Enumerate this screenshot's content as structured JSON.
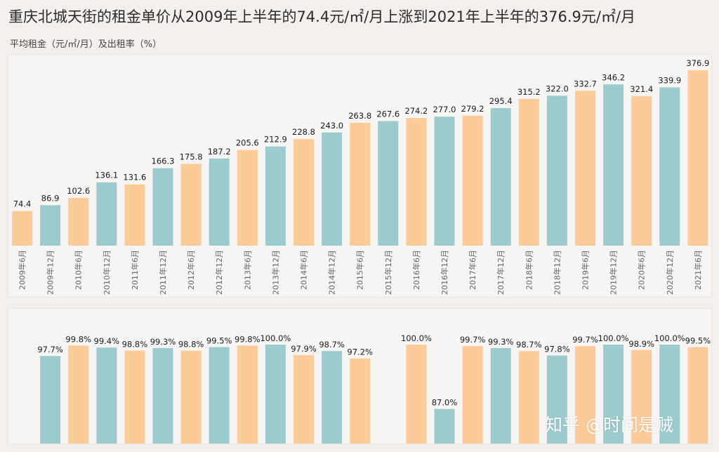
{
  "title": "重庆北城天街的租金单价从2009年上半年的74.4元/㎡/月上涨到2021年上半年的376.9元/㎡/月",
  "subtitle": "平均租金（元/㎡/月）及出租率（%）",
  "watermark": "知乎 @时间是贼",
  "colors": {
    "teal": "#9ccbcd",
    "orange": "#fdcb97"
  },
  "chart_data": [
    {
      "type": "bar",
      "ylabel": "平均租金（元/㎡/月）",
      "categories": [
        "2009年6月",
        "2009年12月",
        "2010年6月",
        "2010年12月",
        "2011年6月",
        "2011年12月",
        "2012年6月",
        "2012年12月",
        "2013年6月",
        "2013年12月",
        "2014年6月",
        "2014年12月",
        "2015年6月",
        "2015年12月",
        "2016年6月",
        "2016年12月",
        "2017年6月",
        "2017年12月",
        "2018年6月",
        "2018年12月",
        "2019年6月",
        "2019年12月",
        "2020年6月",
        "2020年12月",
        "2021年6月"
      ],
      "values": [
        74.4,
        86.9,
        102.6,
        136.1,
        131.6,
        166.3,
        175.8,
        187.2,
        205.6,
        212.9,
        228.8,
        243.0,
        263.8,
        267.6,
        274.2,
        277.0,
        279.2,
        295.4,
        315.2,
        322.0,
        332.7,
        346.2,
        321.4,
        339.9,
        376.9
      ],
      "value_labels": [
        "74.4",
        "86.9",
        "102.6",
        "136.1",
        "131.6",
        "166.3",
        "175.8",
        "187.2",
        "205.6",
        "212.9",
        "228.8",
        "243.0",
        "263.8",
        "267.6",
        "274.2",
        "277.0",
        "279.2",
        "295.4",
        "315.2",
        "322.0",
        "332.7",
        "346.2",
        "321.4",
        "339.9",
        "376.9"
      ],
      "colors": [
        "orange",
        "teal",
        "orange",
        "teal",
        "orange",
        "teal",
        "orange",
        "teal",
        "orange",
        "teal",
        "orange",
        "teal",
        "orange",
        "teal",
        "orange",
        "teal",
        "orange",
        "teal",
        "orange",
        "teal",
        "orange",
        "teal",
        "orange",
        "teal",
        "orange"
      ]
    },
    {
      "type": "bar",
      "ylabel": "出租率（%）",
      "values": [
        null,
        97.7,
        99.8,
        99.4,
        98.8,
        99.3,
        98.8,
        99.5,
        99.8,
        100.0,
        97.9,
        98.7,
        97.2,
        null,
        100.0,
        87.0,
        99.7,
        99.3,
        98.7,
        97.8,
        99.7,
        100.0,
        98.9,
        100.0,
        99.5
      ],
      "value_labels": [
        "",
        "97.7%",
        "99.8%",
        "99.4%",
        "98.8%",
        "99.3%",
        "98.8%",
        "99.5%",
        "99.8%",
        "100.0%",
        "97.9%",
        "98.7%",
        "97.2%",
        "",
        "100.0%",
        "87.0%",
        "99.7%",
        "99.3%",
        "98.7%",
        "97.8%",
        "99.7%",
        "100.0%",
        "98.9%",
        "100.0%",
        "99.5%"
      ],
      "colors": [
        "orange",
        "teal",
        "orange",
        "teal",
        "orange",
        "teal",
        "orange",
        "teal",
        "orange",
        "teal",
        "orange",
        "teal",
        "orange",
        "teal",
        "orange",
        "teal",
        "orange",
        "teal",
        "orange",
        "teal",
        "orange",
        "teal",
        "orange",
        "teal",
        "orange"
      ]
    }
  ]
}
